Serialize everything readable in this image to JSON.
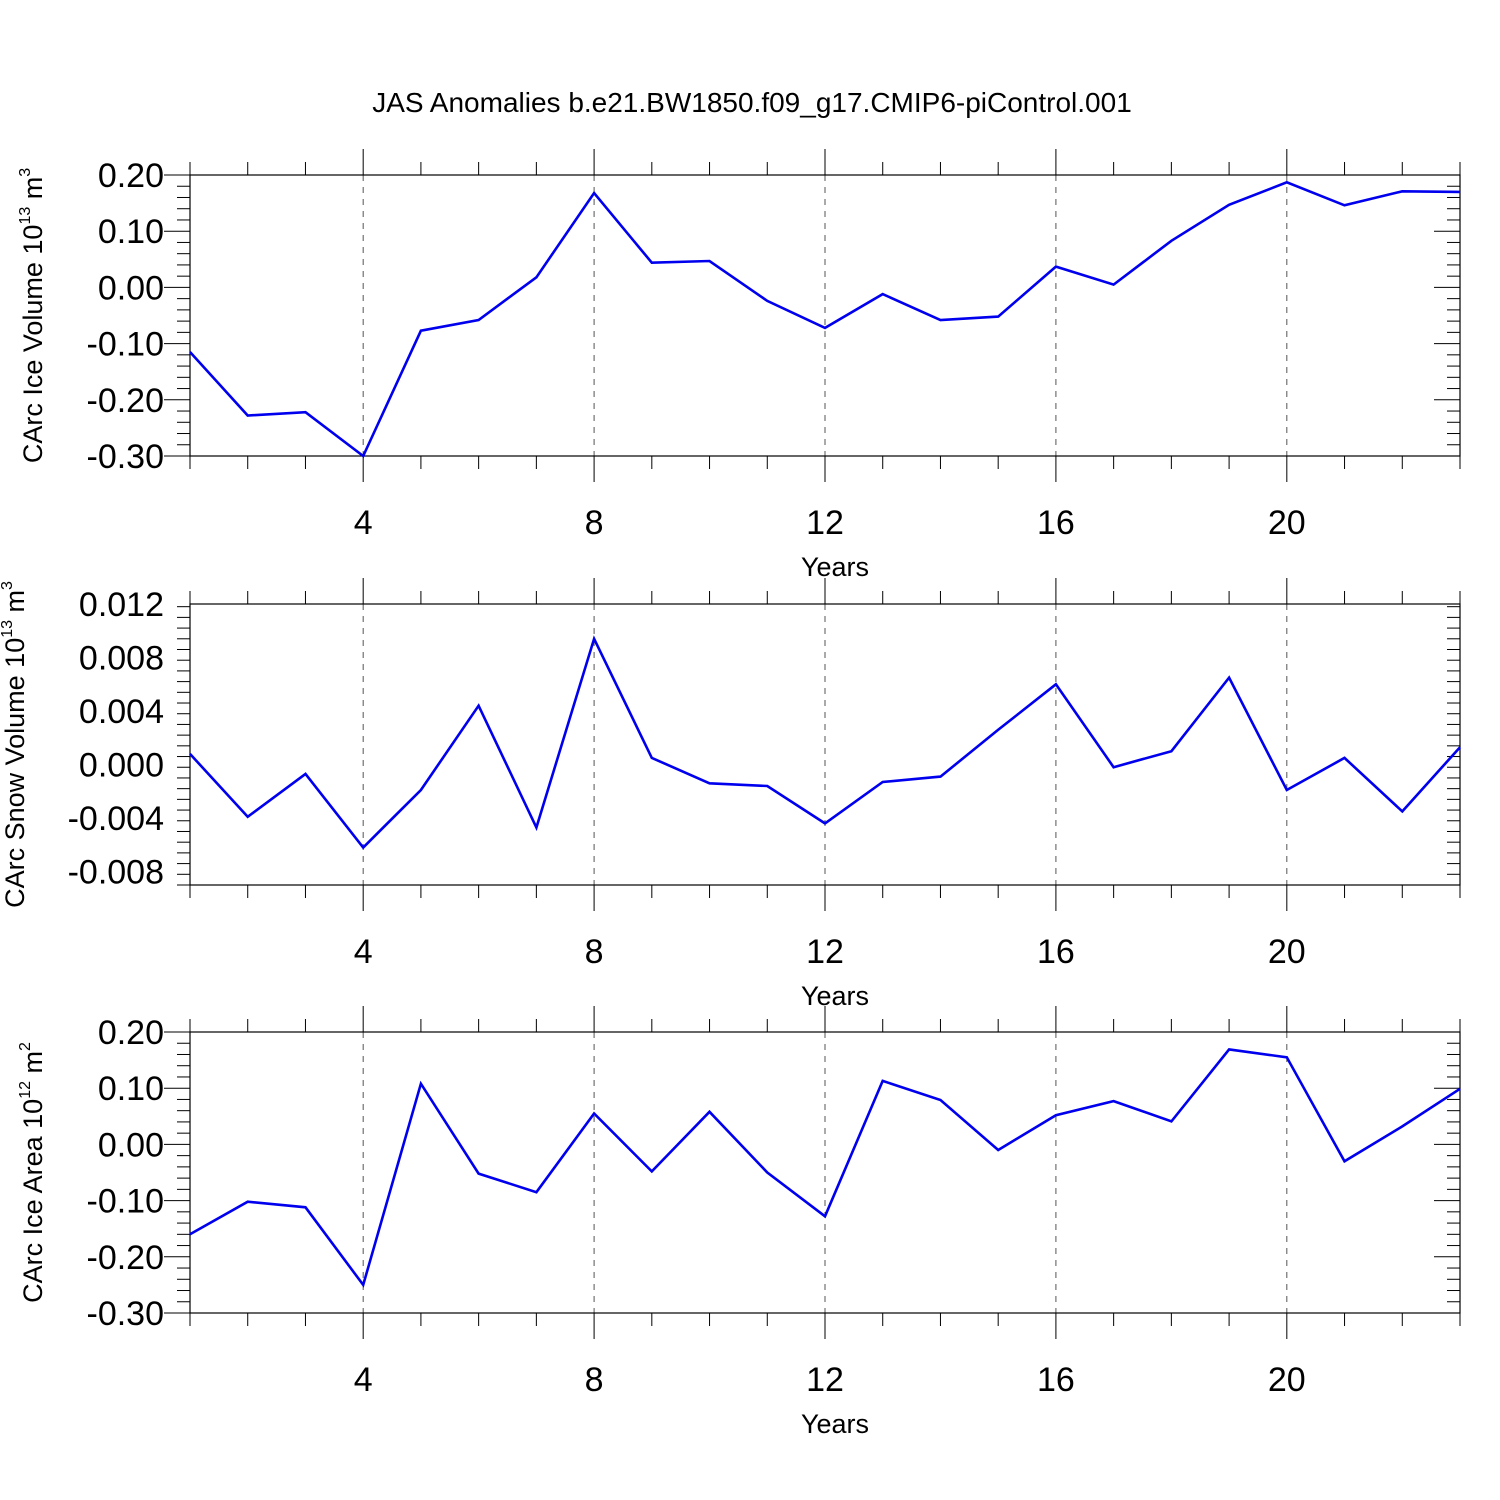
{
  "figure": {
    "title": "JAS Anomalies b.e21.BW1850.f09_g17.CMIP6-piControl.001"
  },
  "colors": {
    "series": "#0000ee"
  },
  "chart_data": [
    {
      "type": "line",
      "ylabel": "CArc Ice Volume 10",
      "ylabel_exp": "13",
      "ylabel_unit": " m",
      "ylabel_unit_exp": "3",
      "xlabel": "Years",
      "xlim": [
        1,
        23
      ],
      "ylim": [
        -0.3,
        0.2
      ],
      "grid": "vertical dashed at labeled x ticks",
      "xticks": [
        4,
        8,
        12,
        16,
        20
      ],
      "xtick_labels": [
        "4",
        "8",
        "12",
        "16",
        "20"
      ],
      "yticks": [
        -0.3,
        -0.2,
        -0.1,
        0.0,
        0.1,
        0.2
      ],
      "ytick_labels": [
        "-0.30",
        "-0.20",
        "-0.10",
        "0.00",
        "0.10",
        "0.20"
      ],
      "x": [
        1,
        2,
        3,
        4,
        5,
        6,
        7,
        8,
        9,
        10,
        11,
        12,
        13,
        14,
        15,
        16,
        17,
        18,
        19,
        20,
        21,
        22,
        23
      ],
      "values": [
        -0.115,
        -0.228,
        -0.222,
        -0.3,
        -0.077,
        -0.058,
        0.018,
        0.168,
        0.044,
        0.047,
        -0.024,
        -0.072,
        -0.012,
        -0.058,
        -0.052,
        0.037,
        0.005,
        0.083,
        0.147,
        0.187,
        0.146,
        0.171,
        0.17
      ]
    },
    {
      "type": "line",
      "ylabel": "CArc Snow Volume 10",
      "ylabel_exp": "13",
      "ylabel_unit": " m",
      "ylabel_unit_exp": "3",
      "xlabel": "Years",
      "xlim": [
        1,
        23
      ],
      "ylim": [
        -0.009,
        0.012
      ],
      "grid": "vertical dashed at labeled x ticks",
      "xticks": [
        4,
        8,
        12,
        16,
        20
      ],
      "xtick_labels": [
        "4",
        "8",
        "12",
        "16",
        "20"
      ],
      "yticks": [
        -0.008,
        -0.004,
        0.0,
        0.004,
        0.008,
        0.012
      ],
      "ytick_labels": [
        "-0.008",
        "-0.004",
        "0.000",
        "0.004",
        "0.008",
        "0.012"
      ],
      "x": [
        1,
        2,
        3,
        4,
        5,
        6,
        7,
        8,
        9,
        10,
        11,
        12,
        13,
        14,
        15,
        16,
        17,
        18,
        19,
        20,
        21,
        22,
        23
      ],
      "values": [
        0.0008,
        -0.0039,
        -0.0007,
        -0.0062,
        -0.0019,
        0.0044,
        -0.0047,
        0.0094,
        0.0005,
        -0.0014,
        -0.0016,
        -0.0044,
        -0.0013,
        -0.0009,
        0.0026,
        0.006,
        -0.0002,
        0.001,
        0.0065,
        -0.0019,
        0.0005,
        -0.0035,
        0.0013
      ]
    },
    {
      "type": "line",
      "ylabel": "CArc Ice Area 10",
      "ylabel_exp": "12",
      "ylabel_unit": " m",
      "ylabel_unit_exp": "2",
      "xlabel": "Years",
      "xlim": [
        1,
        23
      ],
      "ylim": [
        -0.3,
        0.2
      ],
      "grid": "vertical dashed at labeled x ticks",
      "xticks": [
        4,
        8,
        12,
        16,
        20
      ],
      "xtick_labels": [
        "4",
        "8",
        "12",
        "16",
        "20"
      ],
      "yticks": [
        -0.3,
        -0.2,
        -0.1,
        0.0,
        0.1,
        0.2
      ],
      "ytick_labels": [
        "-0.30",
        "-0.20",
        "-0.10",
        "0.00",
        "0.10",
        "0.20"
      ],
      "x": [
        1,
        2,
        3,
        4,
        5,
        6,
        7,
        8,
        9,
        10,
        11,
        12,
        13,
        14,
        15,
        16,
        17,
        18,
        19,
        20,
        21,
        22,
        23
      ],
      "values": [
        -0.16,
        -0.102,
        -0.112,
        -0.25,
        0.108,
        -0.052,
        -0.085,
        0.055,
        -0.048,
        0.058,
        -0.05,
        -0.128,
        0.113,
        0.079,
        -0.01,
        0.052,
        0.077,
        0.041,
        0.169,
        0.155,
        -0.03,
        0.032,
        0.099
      ]
    }
  ]
}
